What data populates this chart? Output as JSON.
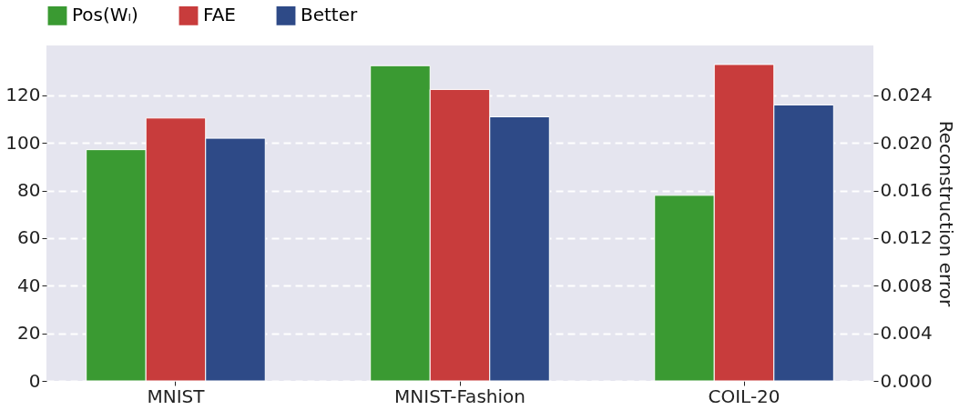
{
  "chart_data": {
    "type": "bar",
    "categories": [
      "MNIST",
      "MNIST-Fashion",
      "COIL-20"
    ],
    "series": [
      {
        "name": "Pos(Wₗ)",
        "color": "#3a9a32",
        "values": [
          97.2,
          132.5,
          78.0
        ]
      },
      {
        "name": "FAE",
        "color": "#c83c3c",
        "values": [
          0.0221,
          0.0245,
          0.0266
        ],
        "axis": "y2"
      },
      {
        "name": "Better",
        "color": "#2e4a87",
        "values": [
          0.0204,
          0.0222,
          0.0232
        ],
        "axis": "y2"
      }
    ],
    "y2label": "Reconstruction error",
    "ylim": [
      0,
      141
    ],
    "yticks": [
      0,
      20,
      40,
      60,
      80,
      100,
      120
    ],
    "y2lim": [
      0,
      0.0282
    ],
    "y2ticks": [
      {
        "value": 0,
        "label": "0.000"
      },
      {
        "value": 0.004,
        "label": "0.004"
      },
      {
        "value": 0.008,
        "label": "0.008"
      },
      {
        "value": 0.012,
        "label": "0.012"
      },
      {
        "value": 0.016,
        "label": "0.016"
      },
      {
        "value": 0.02,
        "label": "0.020"
      },
      {
        "value": 0.024,
        "label": "0.024"
      }
    ],
    "grid": "y",
    "legend": "top"
  }
}
